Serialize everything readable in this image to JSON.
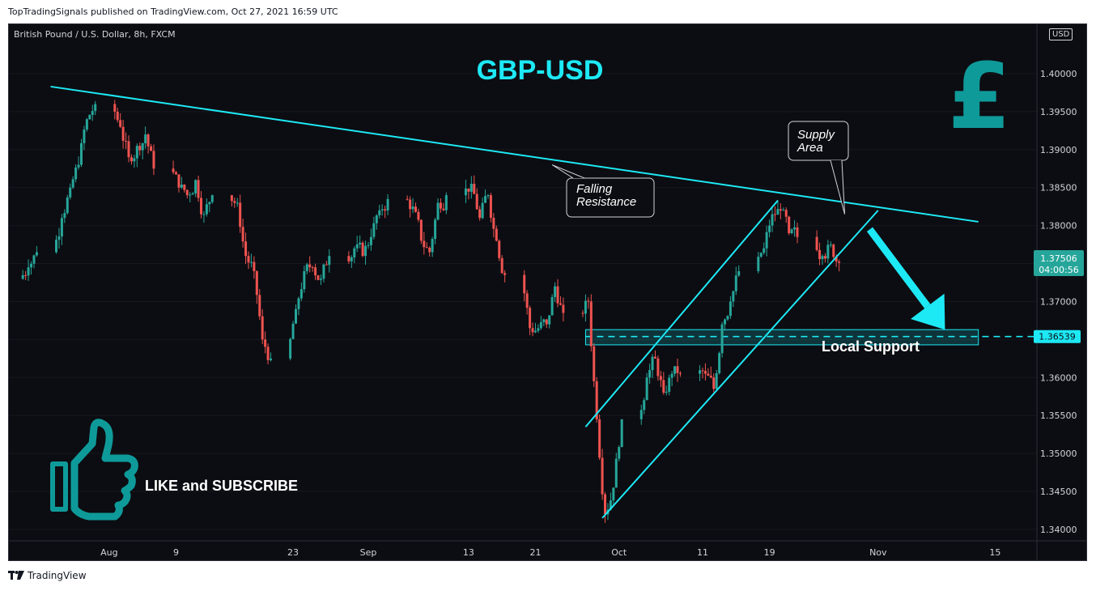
{
  "header": {
    "published_line": "TopTradingSignals published on TradingView.com, Oct 27, 2021 16:59 UTC"
  },
  "footer": {
    "brand": "TradingView",
    "logo_icon": "tradingview-logo-icon"
  },
  "chart_data": {
    "type": "candlestick",
    "symbol_line": "British Pound / U.S. Dollar, 8h, FXCM",
    "title": "GBP-USD",
    "currency_unit": "USD",
    "ylim": [
      1.3385,
      1.4065
    ],
    "y_ticks": [
      "1.40000",
      "1.39500",
      "1.39000",
      "1.38500",
      "1.38000",
      "1.37500",
      "1.37000",
      "1.36500",
      "1.36000",
      "1.35500",
      "1.35000",
      "1.34500",
      "1.34000"
    ],
    "x_ticks": [
      {
        "label": "Aug",
        "date": "2021-08-01"
      },
      {
        "label": "9",
        "date": "2021-08-09"
      },
      {
        "label": "23",
        "date": "2021-08-23"
      },
      {
        "label": "Sep",
        "date": "2021-09-01"
      },
      {
        "label": "13",
        "date": "2021-09-13"
      },
      {
        "label": "21",
        "date": "2021-09-21"
      },
      {
        "label": "Oct",
        "date": "2021-10-01"
      },
      {
        "label": "11",
        "date": "2021-10-11"
      },
      {
        "label": "19",
        "date": "2021-10-19"
      },
      {
        "label": "Nov",
        "date": "2021-11-01"
      },
      {
        "label": "15",
        "date": "2021-11-15"
      }
    ],
    "series": [
      {
        "date": "2021-07-22",
        "close": 1.3745
      },
      {
        "date": "2021-07-23",
        "close": 1.3765
      },
      {
        "date": "2021-07-26",
        "close": 1.381
      },
      {
        "date": "2021-07-27",
        "close": 1.385
      },
      {
        "date": "2021-07-28",
        "close": 1.388
      },
      {
        "date": "2021-07-29",
        "close": 1.394
      },
      {
        "date": "2021-07-30",
        "close": 1.396
      },
      {
        "date": "2021-08-02",
        "close": 1.393
      },
      {
        "date": "2021-08-03",
        "close": 1.389
      },
      {
        "date": "2021-08-04",
        "close": 1.3905
      },
      {
        "date": "2021-08-05",
        "close": 1.392
      },
      {
        "date": "2021-08-06",
        "close": 1.3875
      },
      {
        "date": "2021-08-09",
        "close": 1.385
      },
      {
        "date": "2021-08-10",
        "close": 1.384
      },
      {
        "date": "2021-08-11",
        "close": 1.386
      },
      {
        "date": "2021-08-12",
        "close": 1.3815
      },
      {
        "date": "2021-08-13",
        "close": 1.384
      },
      {
        "date": "2021-08-16",
        "close": 1.383
      },
      {
        "date": "2021-08-17",
        "close": 1.376
      },
      {
        "date": "2021-08-18",
        "close": 1.374
      },
      {
        "date": "2021-08-19",
        "close": 1.365
      },
      {
        "date": "2021-08-20",
        "close": 1.3625
      },
      {
        "date": "2021-08-23",
        "close": 1.369
      },
      {
        "date": "2021-08-24",
        "close": 1.374
      },
      {
        "date": "2021-08-25",
        "close": 1.3745
      },
      {
        "date": "2021-08-26",
        "close": 1.373
      },
      {
        "date": "2021-08-27",
        "close": 1.376
      },
      {
        "date": "2021-08-30",
        "close": 1.377
      },
      {
        "date": "2021-08-31",
        "close": 1.376
      },
      {
        "date": "2021-09-01",
        "close": 1.3785
      },
      {
        "date": "2021-09-02",
        "close": 1.382
      },
      {
        "date": "2021-09-03",
        "close": 1.3835
      },
      {
        "date": "2021-09-06",
        "close": 1.3825
      },
      {
        "date": "2021-09-07",
        "close": 1.378
      },
      {
        "date": "2021-09-08",
        "close": 1.3765
      },
      {
        "date": "2021-09-09",
        "close": 1.383
      },
      {
        "date": "2021-09-10",
        "close": 1.384
      },
      {
        "date": "2021-09-13",
        "close": 1.3855
      },
      {
        "date": "2021-09-14",
        "close": 1.381
      },
      {
        "date": "2021-09-15",
        "close": 1.384
      },
      {
        "date": "2021-09-16",
        "close": 1.378
      },
      {
        "date": "2021-09-17",
        "close": 1.3735
      },
      {
        "date": "2021-09-20",
        "close": 1.3665
      },
      {
        "date": "2021-09-21",
        "close": 1.3665
      },
      {
        "date": "2021-09-22",
        "close": 1.367
      },
      {
        "date": "2021-09-23",
        "close": 1.372
      },
      {
        "date": "2021-09-24",
        "close": 1.3685
      },
      {
        "date": "2021-09-27",
        "close": 1.37
      },
      {
        "date": "2021-09-28",
        "close": 1.3545
      },
      {
        "date": "2021-09-29",
        "close": 1.342
      },
      {
        "date": "2021-09-30",
        "close": 1.3455
      },
      {
        "date": "2021-10-01",
        "close": 1.3545
      },
      {
        "date": "2021-10-04",
        "close": 1.36
      },
      {
        "date": "2021-10-05",
        "close": 1.3625
      },
      {
        "date": "2021-10-06",
        "close": 1.358
      },
      {
        "date": "2021-10-07",
        "close": 1.3605
      },
      {
        "date": "2021-10-08",
        "close": 1.3605
      },
      {
        "date": "2021-10-11",
        "close": 1.3605
      },
      {
        "date": "2021-10-12",
        "close": 1.3585
      },
      {
        "date": "2021-10-13",
        "close": 1.367
      },
      {
        "date": "2021-10-14",
        "close": 1.37
      },
      {
        "date": "2021-10-15",
        "close": 1.374
      },
      {
        "date": "2021-10-18",
        "close": 1.377
      },
      {
        "date": "2021-10-19",
        "close": 1.3815
      },
      {
        "date": "2021-10-20",
        "close": 1.382
      },
      {
        "date": "2021-10-21",
        "close": 1.379
      },
      {
        "date": "2021-10-22",
        "close": 1.3785
      },
      {
        "date": "2021-10-25",
        "close": 1.376
      },
      {
        "date": "2021-10-26",
        "close": 1.3775
      },
      {
        "date": "2021-10-27",
        "close": 1.3751
      }
    ],
    "last_price": "1.37506",
    "countdown": "04:00:56",
    "support_level": 1.36539,
    "support_label": "1.36539",
    "support_zone": [
      1.3643,
      1.3663
    ],
    "annotations": {
      "falling_resistance": "Falling\nResistance",
      "supply_area": "Supply\nArea",
      "local_support": "Local Support",
      "cta": "LIKE and SUBSCRIBE"
    },
    "trendlines": [
      {
        "name": "falling-resistance",
        "from": [
          "2021-07-25",
          1.3983
        ],
        "to": [
          "2021-11-13",
          1.3805
        ]
      },
      {
        "name": "channel-upper",
        "from": [
          "2021-09-27",
          1.3535
        ],
        "to": [
          "2021-10-20",
          1.3833
        ]
      },
      {
        "name": "channel-lower",
        "from": [
          "2021-09-29",
          1.3415
        ],
        "to": [
          "2021-11-01",
          1.382
        ]
      }
    ],
    "forecast_arrow": {
      "from": [
        "2021-10-31",
        1.3795
      ],
      "to": [
        "2021-11-09",
        1.3663
      ]
    },
    "colors": {
      "up": "#26a69a",
      "down": "#ef5350",
      "drawing": "#1de9f5",
      "last_price_bg": "#26a69a",
      "background": "#0c0d12",
      "icon_teal": "#0f9a9a",
      "text": "#d1d4dc"
    },
    "icons": [
      "pound-sign-icon",
      "thumbs-up-icon"
    ]
  }
}
